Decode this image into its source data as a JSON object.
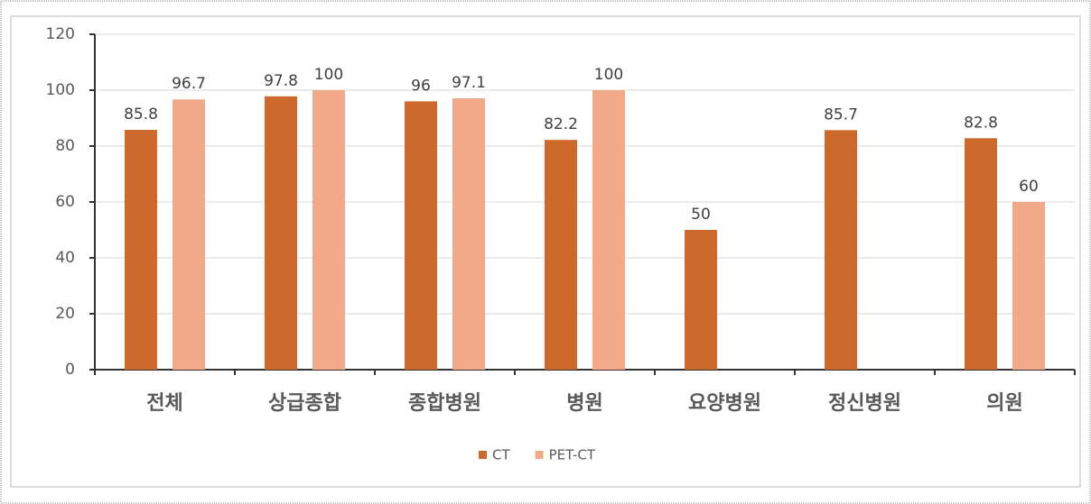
{
  "chart_data": {
    "type": "bar",
    "categories": [
      "전체",
      "상급종합",
      "종합병원",
      "병원",
      "요양병원",
      "정신병원",
      "의원"
    ],
    "series": [
      {
        "name": "CT",
        "color": "#cd6a2b",
        "values": [
          85.8,
          97.8,
          96,
          82.2,
          50,
          85.7,
          82.8
        ]
      },
      {
        "name": "PET-CT",
        "color": "#f2a98a",
        "values": [
          96.7,
          100,
          97.1,
          100,
          null,
          null,
          60
        ]
      }
    ],
    "ylim": [
      0,
      120
    ],
    "yticks": [
      0,
      20,
      40,
      60,
      80,
      100,
      120
    ],
    "grid": true,
    "legend": "bottom"
  }
}
